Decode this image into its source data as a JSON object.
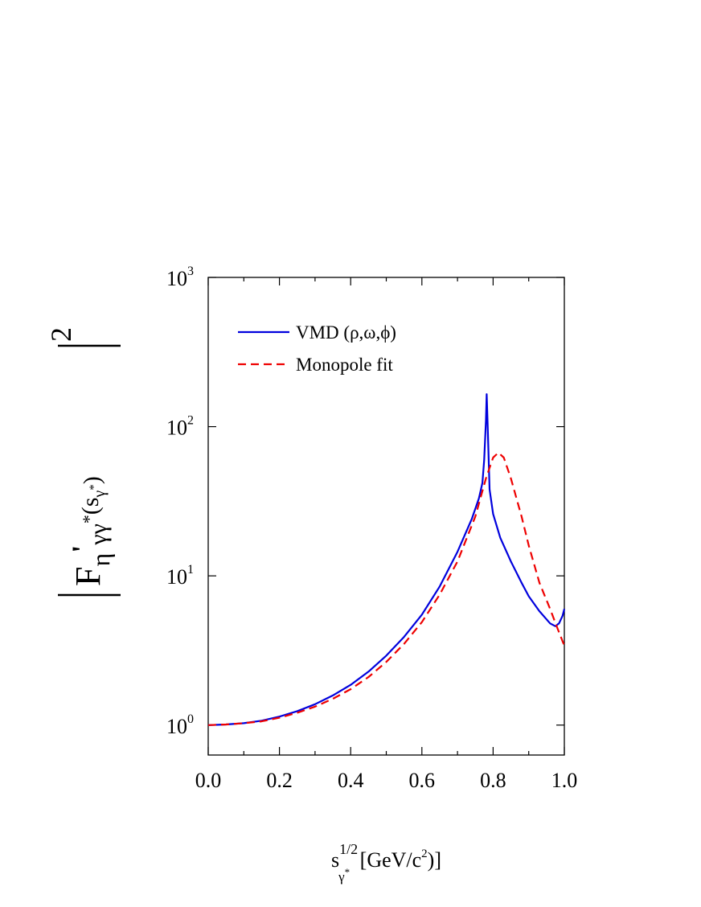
{
  "chart_data": {
    "type": "line",
    "x_axis": {
      "min": 0.0,
      "max": 1.0,
      "ticks": [
        0.0,
        0.2,
        0.4,
        0.6,
        0.8,
        1.0
      ],
      "tick_labels": [
        "0.0",
        "0.2",
        "0.4",
        "0.6",
        "0.8",
        "1.0"
      ],
      "label": {
        "base": "s",
        "sup": "1/2",
        "sub": "γ",
        "subsup": "*",
        "rest1": " [GeV/c",
        "rest_sup": "2",
        "rest2": ")]"
      }
    },
    "y_axis": {
      "scale": "log",
      "min": 0.63,
      "max": 1000,
      "ticks": [
        1,
        10,
        100,
        1000
      ],
      "tick_labels": [
        {
          "base": "10",
          "exp": "0"
        },
        {
          "base": "10",
          "exp": "1"
        },
        {
          "base": "10",
          "exp": "2"
        },
        {
          "base": "10",
          "exp": "3"
        }
      ],
      "label": {
        "F": "F",
        "eta": "η",
        "prime": "'",
        "gg": "γγ",
        "star": "*",
        "open": "(s",
        "inner_sub": "γ",
        "inner_star": "*",
        "close": ")",
        "power": "2"
      }
    },
    "legend": {
      "placement": "top-left",
      "entries": [
        "VMD (ρ,ω,ϕ)",
        "Monopole fit"
      ]
    },
    "series": [
      {
        "name": "VMD (ρ,ω,ϕ)",
        "color": "#0000dd",
        "dash": "solid",
        "points": [
          [
            0.0,
            1.0
          ],
          [
            0.05,
            1.01
          ],
          [
            0.1,
            1.03
          ],
          [
            0.15,
            1.07
          ],
          [
            0.2,
            1.14
          ],
          [
            0.25,
            1.24
          ],
          [
            0.3,
            1.38
          ],
          [
            0.35,
            1.58
          ],
          [
            0.4,
            1.86
          ],
          [
            0.45,
            2.28
          ],
          [
            0.5,
            2.92
          ],
          [
            0.55,
            3.9
          ],
          [
            0.6,
            5.5
          ],
          [
            0.65,
            8.5
          ],
          [
            0.7,
            14.5
          ],
          [
            0.74,
            24
          ],
          [
            0.76,
            33
          ],
          [
            0.77,
            42
          ],
          [
            0.775,
            60
          ],
          [
            0.78,
            110
          ],
          [
            0.782,
            165
          ],
          [
            0.785,
            95
          ],
          [
            0.79,
            38
          ],
          [
            0.8,
            26
          ],
          [
            0.82,
            18
          ],
          [
            0.85,
            12.5
          ],
          [
            0.88,
            9
          ],
          [
            0.9,
            7.3
          ],
          [
            0.93,
            5.8
          ],
          [
            0.96,
            4.8
          ],
          [
            0.975,
            4.6
          ],
          [
            0.985,
            4.8
          ],
          [
            0.995,
            5.4
          ],
          [
            1.0,
            6.0
          ]
        ]
      },
      {
        "name": "Monopole fit",
        "color": "#ee0000",
        "dash": "dashed",
        "points": [
          [
            0.0,
            1.0
          ],
          [
            0.05,
            1.01
          ],
          [
            0.1,
            1.03
          ],
          [
            0.15,
            1.06
          ],
          [
            0.2,
            1.12
          ],
          [
            0.25,
            1.21
          ],
          [
            0.3,
            1.33
          ],
          [
            0.35,
            1.5
          ],
          [
            0.4,
            1.74
          ],
          [
            0.45,
            2.1
          ],
          [
            0.5,
            2.65
          ],
          [
            0.55,
            3.5
          ],
          [
            0.6,
            4.9
          ],
          [
            0.65,
            7.5
          ],
          [
            0.7,
            12.5
          ],
          [
            0.75,
            25
          ],
          [
            0.78,
            45
          ],
          [
            0.8,
            62
          ],
          [
            0.815,
            67
          ],
          [
            0.83,
            62
          ],
          [
            0.85,
            45
          ],
          [
            0.88,
            25
          ],
          [
            0.9,
            16
          ],
          [
            0.93,
            9
          ],
          [
            0.96,
            6
          ],
          [
            0.98,
            4.5
          ],
          [
            1.0,
            3.4
          ]
        ]
      }
    ]
  }
}
